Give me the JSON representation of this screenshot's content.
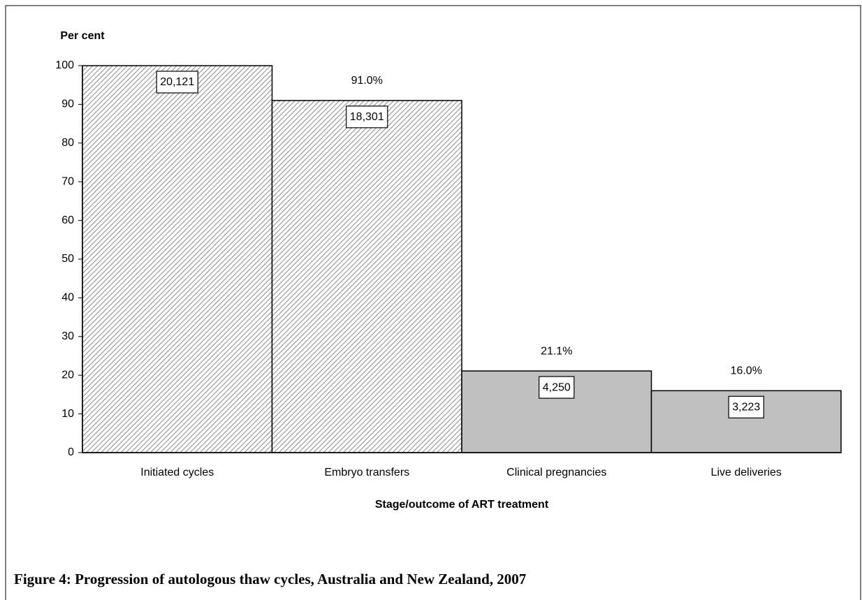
{
  "chart_data": {
    "type": "bar",
    "title": "Figure 4: Progression of autologous thaw cycles, Australia and New Zealand, 2007",
    "y_label": "Per cent",
    "x_label": "Stage/outcome of ART treatment",
    "categories": [
      "Initiated cycles",
      "Embryo transfers",
      "Clinical pregnancies",
      "Live deliveries"
    ],
    "values": [
      100,
      91.0,
      21.1,
      16.0
    ],
    "value_labels": [
      null,
      "91.0%",
      "21.1%",
      "16.0%"
    ],
    "counts": [
      20121,
      18301,
      4250,
      3223
    ],
    "count_labels": [
      "20,121",
      "18,301",
      "4,250",
      "3,223"
    ],
    "colors": [
      "#ffffff",
      "#ffffff",
      "#c0c0c0",
      "#c0c0c0"
    ],
    "hatched": [
      true,
      true,
      false,
      false
    ],
    "ylim": [
      0,
      100
    ],
    "yticks": [
      0,
      10,
      20,
      30,
      40,
      50,
      60,
      70,
      80,
      90,
      100
    ],
    "grid": false
  }
}
